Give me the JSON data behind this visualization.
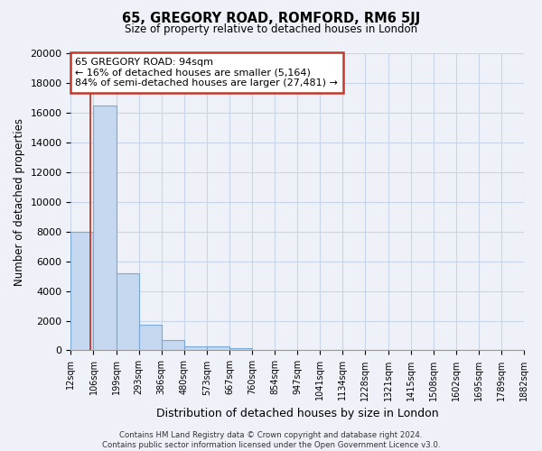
{
  "title": "65, GREGORY ROAD, ROMFORD, RM6 5JJ",
  "subtitle": "Size of property relative to detached houses in London",
  "xlabel": "Distribution of detached houses by size in London",
  "ylabel": "Number of detached properties",
  "bin_labels": [
    "12sqm",
    "106sqm",
    "199sqm",
    "293sqm",
    "386sqm",
    "480sqm",
    "573sqm",
    "667sqm",
    "760sqm",
    "854sqm",
    "947sqm",
    "1041sqm",
    "1134sqm",
    "1228sqm",
    "1321sqm",
    "1415sqm",
    "1508sqm",
    "1602sqm",
    "1695sqm",
    "1789sqm",
    "1882sqm"
  ],
  "bar_heights": [
    8000,
    16500,
    5200,
    1750,
    700,
    300,
    250,
    150,
    0,
    0,
    0,
    0,
    0,
    0,
    0,
    0,
    0,
    0,
    0,
    0
  ],
  "bar_color": "#c5d8f0",
  "bar_edge_color": "#7aa8d4",
  "vline_color": "#c0392b",
  "ylim": [
    0,
    20000
  ],
  "yticks": [
    0,
    2000,
    4000,
    6000,
    8000,
    10000,
    12000,
    14000,
    16000,
    18000,
    20000
  ],
  "annotation_title": "65 GREGORY ROAD: 94sqm",
  "annotation_line1": "← 16% of detached houses are smaller (5,164)",
  "annotation_line2": "84% of semi-detached houses are larger (27,481) →",
  "annotation_box_color": "#ffffff",
  "annotation_box_edge": "#c0392b",
  "footer_line1": "Contains HM Land Registry data © Crown copyright and database right 2024.",
  "footer_line2": "Contains public sector information licensed under the Open Government Licence v3.0.",
  "grid_color": "#c8d4e8",
  "background_color": "#eef2f8"
}
